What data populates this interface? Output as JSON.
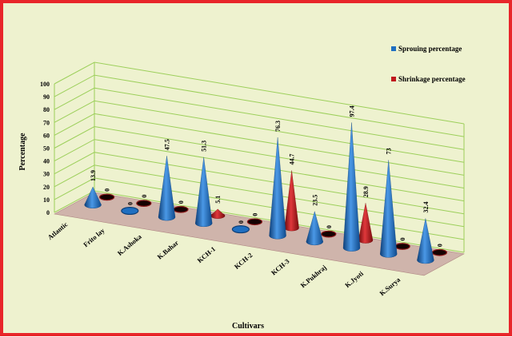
{
  "chart_data": {
    "type": "bar",
    "style": "3d-cone",
    "categories": [
      "Atlantic",
      "Frito lay",
      "K.Ashoka",
      "K.Bahar",
      "KCH-1",
      "KCH-2",
      "KCH-3",
      "K.Pukhraj",
      "K.Jyoti",
      "K.Surya"
    ],
    "series": [
      {
        "name": "Sprouing percentage",
        "color": "#1f6fc1",
        "values": [
          13.9,
          0,
          47.5,
          51.3,
          0,
          76.3,
          23.5,
          97.4,
          73,
          32.4
        ]
      },
      {
        "name": "Shrinkage percentage",
        "color": "#c0181c",
        "values": [
          0,
          0,
          0,
          5.1,
          0,
          44.7,
          0,
          28.9,
          0,
          0
        ]
      }
    ],
    "value_labels": [
      [
        "13.9",
        "0"
      ],
      [
        "0",
        "0"
      ],
      [
        "47.5",
        "0"
      ],
      [
        "51.3",
        "5.1"
      ],
      [
        "0",
        "0"
      ],
      [
        "76.3",
        "44.7"
      ],
      [
        "23.5",
        "0"
      ],
      [
        "97.4",
        "28.9"
      ],
      [
        "73",
        "0"
      ],
      [
        "32.4",
        "0"
      ]
    ],
    "xlabel": "Cultivars",
    "ylabel": "Percentage",
    "ylim": [
      0,
      100
    ],
    "yticks": [
      "0",
      "10",
      "20",
      "30",
      "40",
      "50",
      "60",
      "70",
      "80",
      "90",
      "100"
    ],
    "grid": true,
    "legend": "top-right",
    "colors": {
      "background": "#eef2cf",
      "floor": "#c9a9a5",
      "gridline": "#9ccf5a",
      "border": "#e8262a"
    }
  }
}
